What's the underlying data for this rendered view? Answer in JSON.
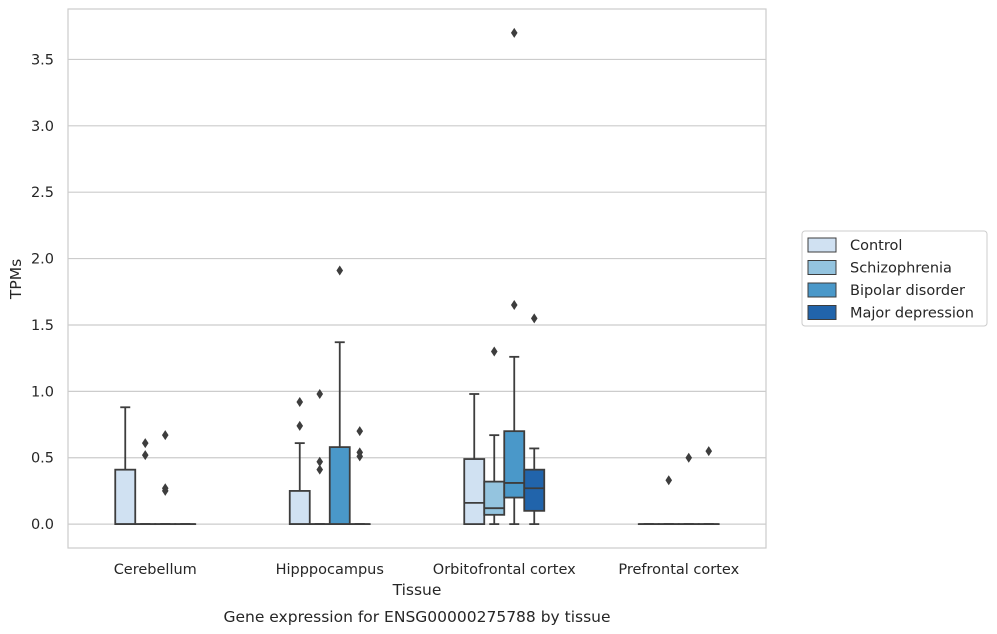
{
  "chart_data": {
    "type": "box",
    "xlabel": "Tissue",
    "ylabel": "TPMs",
    "caption": "Gene expression for ENSG00000275788 by tissue",
    "ylim": [
      -0.18,
      3.88
    ],
    "yticks": [
      "0.0",
      "0.5",
      "1.0",
      "1.5",
      "2.0",
      "2.5",
      "3.0",
      "3.5"
    ],
    "grid": "horizontal",
    "legend_position": "right",
    "categories": [
      "Cerebellum",
      "Hipppocampus",
      "Orbitofrontal cortex",
      "Prefrontal cortex"
    ],
    "series": [
      {
        "name": "Control",
        "color": "#d0e1f2",
        "boxes": [
          {
            "q1": 0.0,
            "median": 0.0,
            "q3": 0.41,
            "whisker_low": 0.0,
            "whisker_high": 0.88,
            "outliers": []
          },
          {
            "q1": 0.0,
            "median": 0.0,
            "q3": 0.25,
            "whisker_low": 0.0,
            "whisker_high": 0.61,
            "outliers": [
              0.92,
              0.74
            ]
          },
          {
            "q1": 0.0,
            "median": 0.16,
            "q3": 0.49,
            "whisker_low": 0.0,
            "whisker_high": 0.98,
            "outliers": []
          },
          {
            "q1": 0.0,
            "median": 0.0,
            "q3": 0.0,
            "whisker_low": 0.0,
            "whisker_high": 0.0,
            "outliers": []
          }
        ]
      },
      {
        "name": "Schizophrenia",
        "color": "#94c4df",
        "boxes": [
          {
            "q1": 0.0,
            "median": 0.0,
            "q3": 0.0,
            "whisker_low": 0.0,
            "whisker_high": 0.0,
            "outliers": [
              0.61,
              0.52
            ]
          },
          {
            "q1": 0.0,
            "median": 0.0,
            "q3": 0.0,
            "whisker_low": 0.0,
            "whisker_high": 0.0,
            "outliers": [
              0.98,
              0.47,
              0.41
            ]
          },
          {
            "q1": 0.07,
            "median": 0.12,
            "q3": 0.32,
            "whisker_low": 0.0,
            "whisker_high": 0.67,
            "outliers": [
              1.3
            ]
          },
          {
            "q1": 0.0,
            "median": 0.0,
            "q3": 0.0,
            "whisker_low": 0.0,
            "whisker_high": 0.0,
            "outliers": [
              0.33
            ]
          }
        ]
      },
      {
        "name": "Bipolar disorder",
        "color": "#4a98c9",
        "boxes": [
          {
            "q1": 0.0,
            "median": 0.0,
            "q3": 0.0,
            "whisker_low": 0.0,
            "whisker_high": 0.0,
            "outliers": [
              0.67,
              0.27,
              0.25
            ]
          },
          {
            "q1": 0.0,
            "median": 0.0,
            "q3": 0.58,
            "whisker_low": 0.0,
            "whisker_high": 1.37,
            "outliers": [
              1.91
            ]
          },
          {
            "q1": 0.2,
            "median": 0.31,
            "q3": 0.7,
            "whisker_low": 0.0,
            "whisker_high": 1.26,
            "outliers": [
              3.7,
              1.65
            ]
          },
          {
            "q1": 0.0,
            "median": 0.0,
            "q3": 0.0,
            "whisker_low": 0.0,
            "whisker_high": 0.0,
            "outliers": [
              0.5
            ]
          }
        ]
      },
      {
        "name": "Major depression",
        "color": "#2164ab",
        "boxes": [
          {
            "q1": 0.0,
            "median": 0.0,
            "q3": 0.0,
            "whisker_low": 0.0,
            "whisker_high": 0.0,
            "outliers": []
          },
          {
            "q1": 0.0,
            "median": 0.0,
            "q3": 0.0,
            "whisker_low": 0.0,
            "whisker_high": 0.0,
            "outliers": [
              0.7,
              0.54,
              0.51
            ]
          },
          {
            "q1": 0.1,
            "median": 0.27,
            "q3": 0.41,
            "whisker_low": 0.0,
            "whisker_high": 0.57,
            "outliers": [
              1.55
            ]
          },
          {
            "q1": 0.0,
            "median": 0.0,
            "q3": 0.0,
            "whisker_low": 0.0,
            "whisker_high": 0.0,
            "outliers": [
              0.55
            ]
          }
        ]
      }
    ]
  }
}
